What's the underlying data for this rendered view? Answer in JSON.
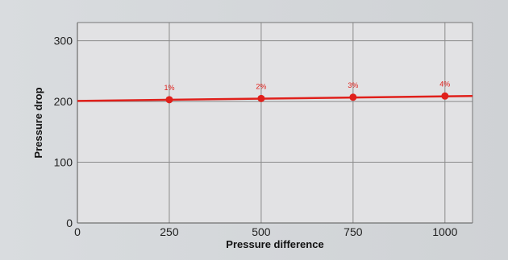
{
  "chart_data": {
    "type": "line",
    "title": "",
    "xlabel": "Pressure difference",
    "ylabel": "Pressure drop",
    "xlim": [
      0,
      1075
    ],
    "ylim": [
      0,
      330
    ],
    "xticks": [
      0,
      250,
      500,
      750,
      1000
    ],
    "yticks": [
      0,
      100,
      200,
      300
    ],
    "grid": true,
    "line": {
      "x": [
        0,
        1075
      ],
      "y": [
        201,
        209
      ]
    },
    "series": [
      {
        "x": [
          250,
          500,
          750,
          1000
        ],
        "y": [
          203,
          205,
          207,
          209
        ],
        "labels": [
          "1%",
          "2%",
          "3%",
          "4%"
        ]
      }
    ],
    "colors": {
      "plot_background": "#e2e2e4",
      "grid": "#8a8a8a",
      "line": "#e0201b",
      "marker": "#e0201b"
    }
  }
}
